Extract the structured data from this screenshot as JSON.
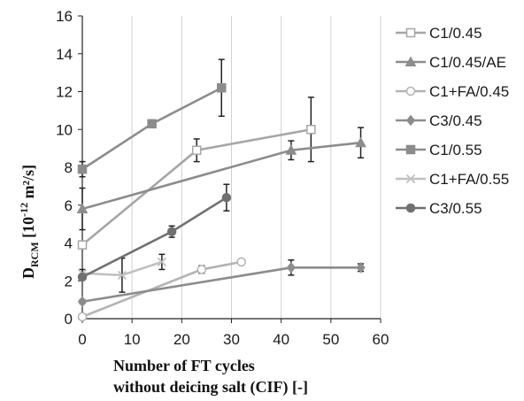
{
  "chart_data": {
    "type": "line",
    "xlabel_line1": "Number of FT cycles",
    "xlabel_line2": "without deicing salt (CIF) [-]",
    "ylabel_main": "D",
    "ylabel_sub": "RCM",
    "ylabel_unit_a": " [10",
    "ylabel_unit_exp": "-12",
    "ylabel_unit_b": " m²/s]",
    "xlim": [
      0,
      60
    ],
    "ylim": [
      0,
      16
    ],
    "xticks": [
      0,
      10,
      20,
      30,
      40,
      50,
      60
    ],
    "yticks": [
      0,
      2,
      4,
      6,
      8,
      10,
      12,
      14,
      16
    ],
    "grid_x": true,
    "grid_y": false,
    "legend_position": "right",
    "series": [
      {
        "name": "C1/0.45",
        "color": "#a6a6a6",
        "marker": "square-open",
        "x": [
          0,
          23,
          46
        ],
        "y": [
          3.9,
          8.9,
          10.0
        ],
        "err": [
          0.2,
          0.6,
          1.7
        ]
      },
      {
        "name": "C1/0.45/AE",
        "color": "#8c8c8c",
        "marker": "triangle",
        "x": [
          0,
          42,
          56
        ],
        "y": [
          5.8,
          8.9,
          9.3
        ],
        "err": [
          1.1,
          0.5,
          0.8
        ]
      },
      {
        "name": "C1+FA/0.45",
        "color": "#b3b3b3",
        "marker": "circle-open",
        "x": [
          0,
          24,
          32
        ],
        "y": [
          0.1,
          2.6,
          3.0
        ],
        "err": [
          0.1,
          0.2,
          0.1
        ]
      },
      {
        "name": "C3/0.45",
        "color": "#8c8c8c",
        "marker": "diamond",
        "x": [
          0,
          42,
          56
        ],
        "y": [
          0.9,
          2.7,
          2.7
        ],
        "err": [
          0.1,
          0.4,
          0.2
        ]
      },
      {
        "name": "C1/0.55",
        "color": "#8c8c8c",
        "marker": "square",
        "x": [
          0,
          14,
          28
        ],
        "y": [
          7.9,
          10.3,
          12.2
        ],
        "err": [
          0.4,
          0.2,
          1.5
        ]
      },
      {
        "name": "C1+FA/0.55",
        "color": "#c0c0c0",
        "marker": "cross",
        "x": [
          0,
          8,
          16
        ],
        "y": [
          2.4,
          2.3,
          3.0
        ],
        "err": [
          0.2,
          0.9,
          0.4
        ]
      },
      {
        "name": "C3/0.55",
        "color": "#707070",
        "marker": "circle",
        "x": [
          0,
          18,
          29
        ],
        "y": [
          2.2,
          4.6,
          6.4
        ],
        "err": [
          0.1,
          0.3,
          0.7
        ]
      }
    ]
  }
}
